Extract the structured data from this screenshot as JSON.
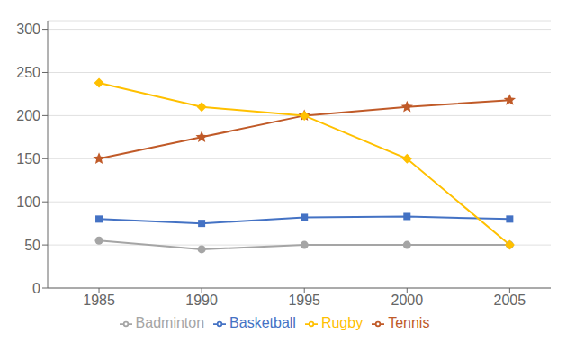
{
  "chart_data": {
    "type": "line",
    "x": [
      1985,
      1990,
      1995,
      2000,
      2005
    ],
    "xlim": [
      1982.5,
      2007
    ],
    "xticks": [
      1985,
      1990,
      1995,
      2000,
      2005
    ],
    "ylim": [
      0,
      310
    ],
    "yticks": [
      0,
      50,
      100,
      150,
      200,
      250,
      300
    ],
    "grid": true,
    "legend": "bottom",
    "series": [
      {
        "name": "Basketball",
        "color": "#4472C4",
        "marker": "square",
        "values": [
          80,
          75,
          82,
          83,
          80
        ]
      },
      {
        "name": "Tennis",
        "color": "#C05A28",
        "marker": "star",
        "values": [
          150,
          175,
          200,
          210,
          218
        ]
      },
      {
        "name": "Badminton",
        "color": "#A5A5A5",
        "marker": "circle",
        "values": [
          55,
          45,
          50,
          50,
          50
        ]
      },
      {
        "name": "Rugby",
        "color": "#FFC000",
        "marker": "diamond",
        "values": [
          238,
          210,
          200,
          150,
          50
        ]
      }
    ]
  }
}
